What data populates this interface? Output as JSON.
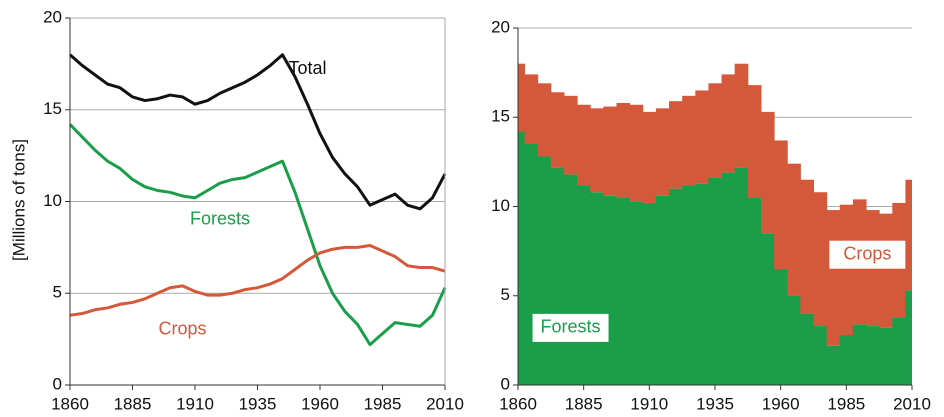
{
  "chart_data": [
    {
      "type": "line",
      "ylabel": "[Millions of tons]",
      "x": [
        1860,
        1865,
        1870,
        1875,
        1880,
        1885,
        1890,
        1895,
        1900,
        1905,
        1910,
        1915,
        1920,
        1925,
        1930,
        1935,
        1940,
        1945,
        1950,
        1955,
        1960,
        1965,
        1970,
        1975,
        1980,
        1985,
        1990,
        1995,
        2000,
        2005,
        2010
      ],
      "series": [
        {
          "name": "Total",
          "color": "#111111",
          "values": [
            18.0,
            17.4,
            16.9,
            16.4,
            16.2,
            15.7,
            15.5,
            15.6,
            15.8,
            15.7,
            15.3,
            15.5,
            15.9,
            16.2,
            16.5,
            16.9,
            17.4,
            18.0,
            16.8,
            15.3,
            13.7,
            12.4,
            11.5,
            10.8,
            9.8,
            10.1,
            10.4,
            9.8,
            9.6,
            10.2,
            11.5
          ]
        },
        {
          "name": "Forests",
          "color": "#1a9e4a",
          "values": [
            14.2,
            13.5,
            12.8,
            12.2,
            11.8,
            11.2,
            10.8,
            10.6,
            10.5,
            10.3,
            10.2,
            10.6,
            11.0,
            11.2,
            11.3,
            11.6,
            11.9,
            12.2,
            10.5,
            8.5,
            6.5,
            5.0,
            4.0,
            3.3,
            2.2,
            2.8,
            3.4,
            3.3,
            3.2,
            3.8,
            5.3
          ]
        },
        {
          "name": "Crops",
          "color": "#d4583a",
          "values": [
            3.8,
            3.9,
            4.1,
            4.2,
            4.4,
            4.5,
            4.7,
            5.0,
            5.3,
            5.4,
            5.1,
            4.9,
            4.9,
            5.0,
            5.2,
            5.3,
            5.5,
            5.8,
            6.3,
            6.8,
            7.2,
            7.4,
            7.5,
            7.5,
            7.6,
            7.3,
            7.0,
            6.5,
            6.4,
            6.4,
            6.2
          ]
        }
      ],
      "xlim": [
        1860,
        2010
      ],
      "xticks": [
        1860,
        1885,
        1910,
        1935,
        1960,
        1985,
        2010
      ],
      "ylim": [
        0,
        20
      ],
      "yticks": [
        0,
        5,
        10,
        15,
        20
      ],
      "grid": true
    },
    {
      "type": "stacked-bar",
      "x": [
        1860,
        1865,
        1870,
        1875,
        1880,
        1885,
        1890,
        1895,
        1900,
        1905,
        1910,
        1915,
        1920,
        1925,
        1930,
        1935,
        1940,
        1945,
        1950,
        1955,
        1960,
        1965,
        1970,
        1975,
        1980,
        1985,
        1990,
        1995,
        2000,
        2005,
        2010
      ],
      "series": [
        {
          "name": "Forests",
          "color": "#1a9e4a",
          "values": [
            14.2,
            13.5,
            12.8,
            12.2,
            11.8,
            11.2,
            10.8,
            10.6,
            10.5,
            10.3,
            10.2,
            10.6,
            11.0,
            11.2,
            11.3,
            11.6,
            11.9,
            12.2,
            10.5,
            8.5,
            6.5,
            5.0,
            4.0,
            3.3,
            2.2,
            2.8,
            3.4,
            3.3,
            3.2,
            3.8,
            5.3
          ]
        },
        {
          "name": "Crops",
          "color": "#d4583a",
          "values": [
            3.8,
            3.9,
            4.1,
            4.2,
            4.4,
            4.5,
            4.7,
            5.0,
            5.3,
            5.4,
            5.1,
            4.9,
            4.9,
            5.0,
            5.2,
            5.3,
            5.5,
            5.8,
            6.3,
            6.8,
            7.2,
            7.4,
            7.5,
            7.5,
            7.6,
            7.3,
            7.0,
            6.5,
            6.4,
            6.4,
            6.2
          ]
        }
      ],
      "xlim": [
        1860,
        2010
      ],
      "xticks": [
        1860,
        1885,
        1910,
        1935,
        1960,
        1985,
        2010
      ],
      "ylim": [
        0,
        20
      ],
      "yticks": [
        0,
        5,
        10,
        15,
        20
      ],
      "grid": true
    }
  ]
}
